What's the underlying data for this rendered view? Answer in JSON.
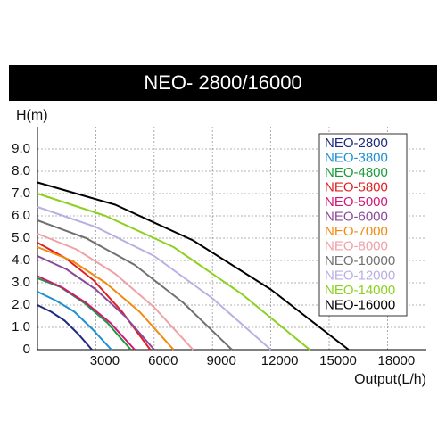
{
  "chart_data": {
    "type": "line",
    "title": "NEO- 2800/16000",
    "y_label": "H(m)",
    "x_label": "Output(L/h)",
    "xlim": [
      0,
      20000
    ],
    "xticks": [
      3000,
      6000,
      9000,
      12000,
      15000,
      18000
    ],
    "ylim": [
      0,
      10
    ],
    "yticks": [
      0,
      {
        "value": 1,
        "label": "1.0"
      },
      {
        "value": 2,
        "label": "2.0"
      },
      {
        "value": 3,
        "label": "3.0"
      },
      {
        "value": 4,
        "label": "4.0"
      },
      {
        "value": 5,
        "label": "5.0"
      },
      {
        "value": 6,
        "label": "6.0"
      },
      {
        "value": 7,
        "label": "7.0"
      },
      {
        "value": 8,
        "label": "8.0"
      },
      {
        "value": 9,
        "label": "9.0"
      }
    ],
    "grid": true,
    "legend": "upper right",
    "series": [
      {
        "name": "NEO-2800",
        "color": "#1f2a7a",
        "x": [
          0,
          700,
          1400,
          2100,
          2800
        ],
        "values": [
          2.0,
          1.7,
          1.3,
          0.7,
          0
        ]
      },
      {
        "name": "NEO-3800",
        "color": "#1e8fd0",
        "x": [
          0,
          950,
          1900,
          2850,
          3800
        ],
        "values": [
          2.6,
          2.2,
          1.7,
          0.9,
          0
        ]
      },
      {
        "name": "NEO-4800",
        "color": "#1a9a3a",
        "x": [
          0,
          1200,
          2400,
          3600,
          4800
        ],
        "values": [
          3.2,
          2.8,
          2.1,
          1.2,
          0
        ]
      },
      {
        "name": "NEO-5800",
        "color": "#e02020",
        "x": [
          0,
          1450,
          2900,
          4350,
          5800
        ],
        "values": [
          4.8,
          4.1,
          3.1,
          1.7,
          0
        ]
      },
      {
        "name": "NEO-5000",
        "color": "#d0187a",
        "x": [
          0,
          1250,
          2500,
          3750,
          5000
        ],
        "values": [
          3.3,
          2.8,
          2.1,
          1.2,
          0
        ]
      },
      {
        "name": "NEO-6000",
        "color": "#8a4a9a",
        "x": [
          0,
          1500,
          3000,
          4500,
          6000
        ],
        "values": [
          4.2,
          3.6,
          2.7,
          1.5,
          0
        ]
      },
      {
        "name": "NEO-7000",
        "color": "#f08a10",
        "x": [
          0,
          1750,
          3500,
          5250,
          7000
        ],
        "values": [
          4.6,
          4.0,
          3.0,
          1.7,
          0
        ]
      },
      {
        "name": "NEO-8000",
        "color": "#f0a0a8",
        "x": [
          0,
          2000,
          4000,
          6000,
          8000
        ],
        "values": [
          5.2,
          4.5,
          3.4,
          1.9,
          0
        ]
      },
      {
        "name": "NEO-10000",
        "color": "#707070",
        "x": [
          0,
          2500,
          5000,
          7500,
          10000
        ],
        "values": [
          5.8,
          5.0,
          3.8,
          2.1,
          0
        ]
      },
      {
        "name": "NEO-12000",
        "color": "#b8b0e0",
        "x": [
          0,
          3000,
          6000,
          9000,
          12000
        ],
        "values": [
          6.4,
          5.5,
          4.2,
          2.3,
          0
        ]
      },
      {
        "name": "NEO-14000",
        "color": "#8cd020",
        "x": [
          0,
          3500,
          7000,
          10500,
          14000
        ],
        "values": [
          7.0,
          6.0,
          4.6,
          2.5,
          0
        ]
      },
      {
        "name": "NEO-16000",
        "color": "#000000",
        "x": [
          0,
          4000,
          8000,
          12000,
          16000
        ],
        "values": [
          7.5,
          6.5,
          4.9,
          2.7,
          0
        ]
      }
    ]
  }
}
